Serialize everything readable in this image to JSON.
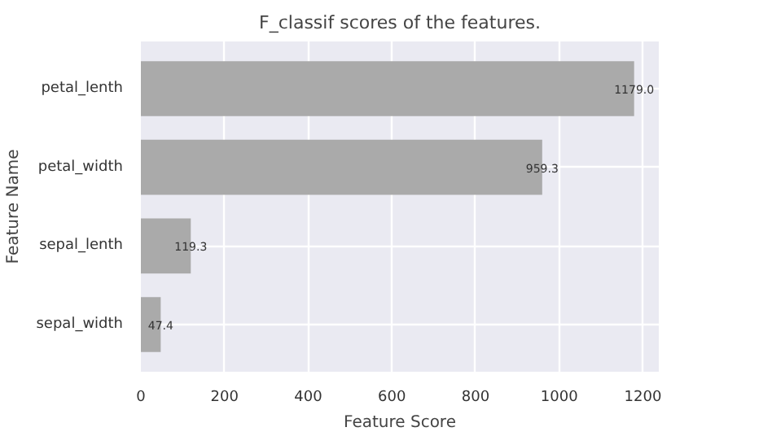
{
  "chart_data": {
    "type": "bar",
    "orientation": "horizontal",
    "title": "F_classif scores of the features.",
    "xlabel": "Feature Score",
    "ylabel": "Feature Name",
    "categories": [
      "petal_lenth",
      "petal_width",
      "sepal_lenth",
      "sepal_width"
    ],
    "values": [
      1179.0,
      959.3,
      119.3,
      47.4
    ],
    "value_labels": [
      "1179.0",
      "959.3",
      "119.3",
      "47.4"
    ],
    "color": "#aaaaaa",
    "xlim": [
      0,
      1238
    ],
    "xticks": [
      0,
      200,
      400,
      600,
      800,
      1000,
      1200
    ],
    "grid": true
  }
}
